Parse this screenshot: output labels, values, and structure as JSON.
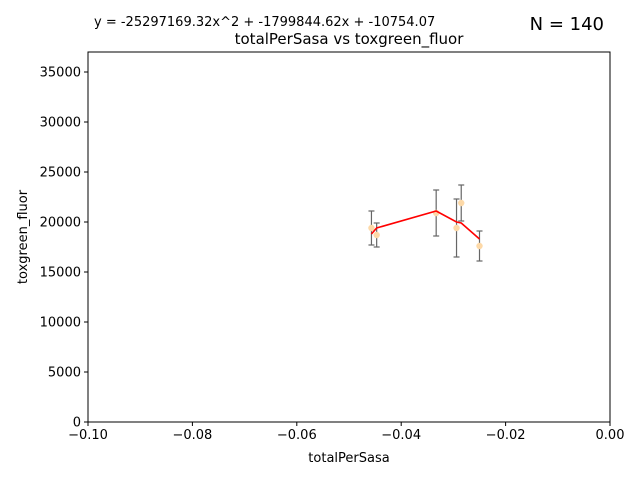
{
  "header": {
    "equation": "y = -25297169.32x^2 + -1799844.62x + -10754.07",
    "n_label": "N = 140"
  },
  "chart_data": {
    "type": "scatter",
    "title": "totalPerSasa vs toxgreen_fluor",
    "xlabel": "totalPerSasa",
    "ylabel": "toxgreen_fluor",
    "xlim": [
      -0.1,
      0.0
    ],
    "ylim": [
      0,
      37000
    ],
    "x_ticks": [
      -0.1,
      -0.08,
      -0.06,
      -0.04,
      -0.02,
      0.0
    ],
    "x_tick_labels": [
      "−0.10",
      "−0.08",
      "−0.06",
      "−0.04",
      "−0.02",
      "0.00"
    ],
    "y_ticks": [
      0,
      5000,
      10000,
      15000,
      20000,
      25000,
      30000,
      35000
    ],
    "y_tick_labels": [
      "0",
      "5000",
      "10000",
      "15000",
      "20000",
      "25000",
      "30000",
      "35000"
    ],
    "grid": false,
    "points": [
      {
        "x": -0.0457,
        "y": 19400,
        "err_low": 1700,
        "err_high": 1700
      },
      {
        "x": -0.0447,
        "y": 18700,
        "err_low": 1200,
        "err_high": 1200
      },
      {
        "x": -0.0333,
        "y": 20900,
        "err_low": 2300,
        "err_high": 2300
      },
      {
        "x": -0.0294,
        "y": 19400,
        "err_low": 2900,
        "err_high": 2900
      },
      {
        "x": -0.0285,
        "y": 21900,
        "err_low": 1800,
        "err_high": 1800
      },
      {
        "x": -0.025,
        "y": 17600,
        "err_low": 1500,
        "err_high": 1500
      }
    ],
    "fit_line": {
      "x": [
        -0.0457,
        -0.0447,
        -0.0333,
        -0.0294,
        -0.0285,
        -0.025
      ],
      "y": [
        18800,
        19400,
        21100,
        20000,
        19900,
        18300
      ]
    },
    "colors": {
      "points": "#fdd9a8",
      "error_bars": "#666666",
      "fit_line": "#ff0000",
      "axes": "#000000"
    }
  }
}
